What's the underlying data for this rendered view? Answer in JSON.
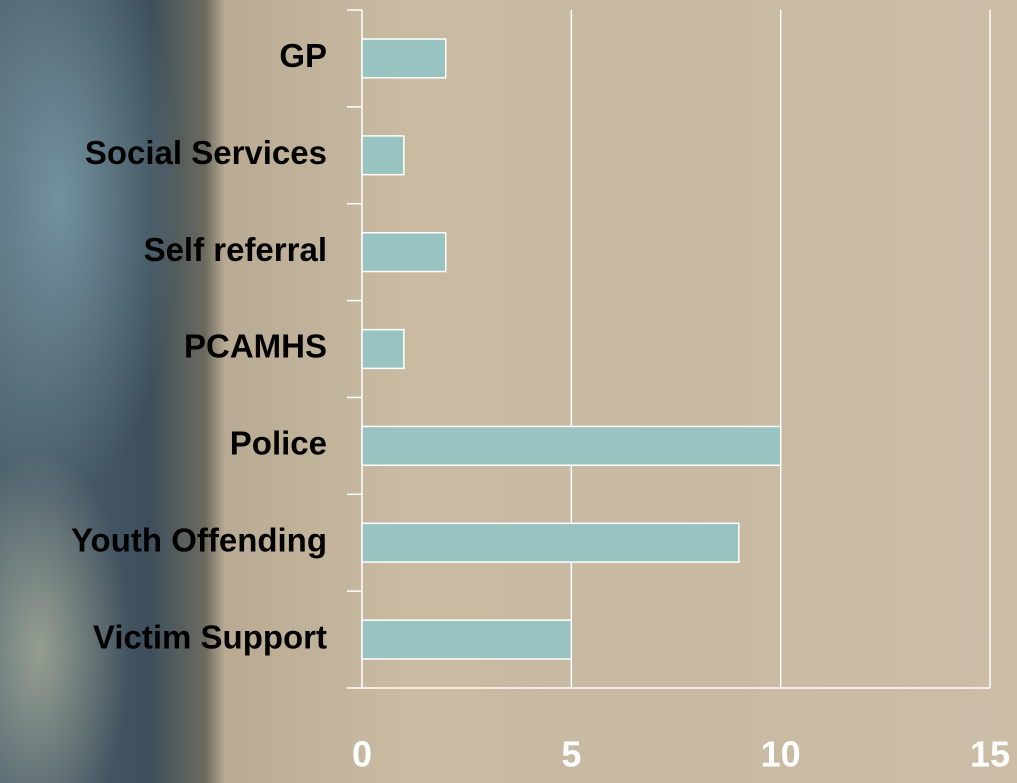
{
  "chart_data": {
    "type": "bar",
    "orientation": "horizontal",
    "categories": [
      "GP",
      "Social Services",
      "Self referral",
      "PCAMHS",
      "Police",
      "Youth Offending",
      "Victim Support"
    ],
    "values": [
      2,
      1,
      2,
      1,
      10,
      9,
      5
    ],
    "color": "#99c3c1",
    "xlim": [
      0,
      15
    ],
    "xticks": [
      0,
      5,
      10,
      15
    ],
    "grid": true
  }
}
